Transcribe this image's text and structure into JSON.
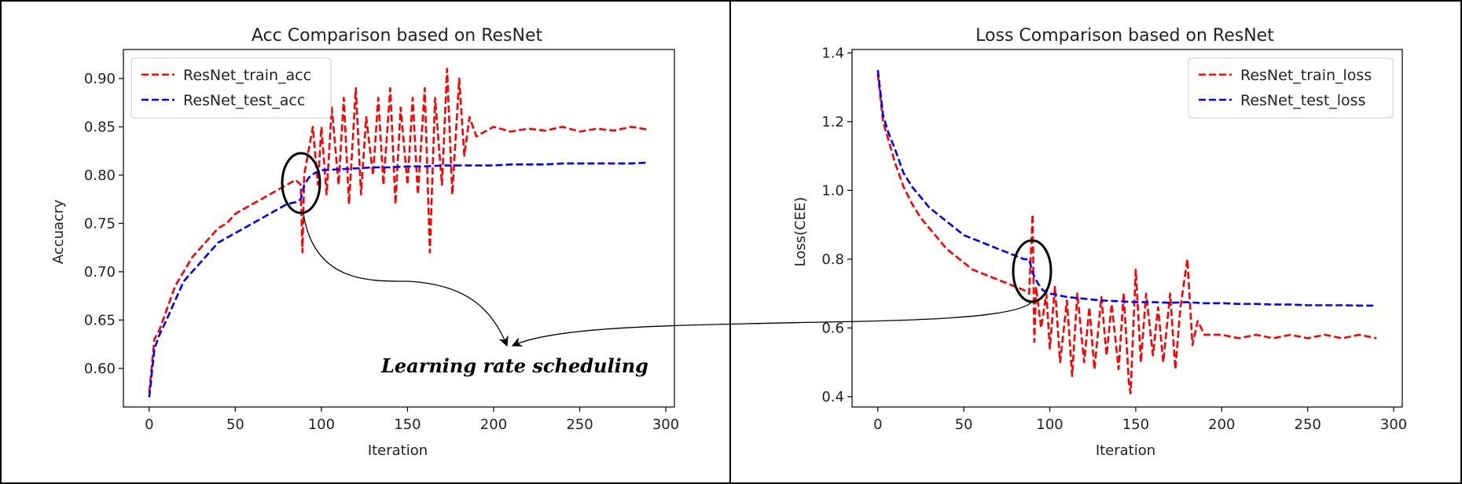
{
  "chart_data": [
    {
      "type": "line",
      "title": "Acc Comparison based on ResNet",
      "xlabel": "Iteration",
      "ylabel": "Accuacry",
      "xlim": [
        -15,
        305
      ],
      "ylim": [
        0.56,
        0.93
      ],
      "xticks": [
        0,
        50,
        100,
        150,
        200,
        250,
        300
      ],
      "yticks": [
        0.6,
        0.65,
        0.7,
        0.75,
        0.8,
        0.85,
        0.9
      ],
      "ytick_labels": [
        "0.60",
        "0.65",
        "0.70",
        "0.75",
        "0.80",
        "0.85",
        "0.90"
      ],
      "legend_position": "top-left",
      "grid": false,
      "series": [
        {
          "name": "ResNet_train_acc",
          "color": "#ff0000",
          "style": "dashed",
          "x": [
            0,
            3,
            6,
            10,
            15,
            20,
            25,
            30,
            35,
            40,
            45,
            50,
            55,
            60,
            65,
            70,
            75,
            80,
            85,
            88,
            89,
            90,
            92,
            95,
            98,
            100,
            103,
            106,
            110,
            113,
            116,
            120,
            123,
            126,
            130,
            133,
            136,
            140,
            143,
            146,
            150,
            153,
            156,
            160,
            163,
            166,
            170,
            173,
            176,
            180,
            183,
            186,
            188,
            190,
            195,
            200,
            210,
            220,
            230,
            240,
            250,
            260,
            270,
            280,
            290
          ],
          "y": [
            0.575,
            0.63,
            0.64,
            0.66,
            0.685,
            0.7,
            0.715,
            0.725,
            0.735,
            0.745,
            0.75,
            0.76,
            0.765,
            0.77,
            0.775,
            0.78,
            0.785,
            0.79,
            0.795,
            0.79,
            0.72,
            0.8,
            0.82,
            0.85,
            0.79,
            0.85,
            0.78,
            0.87,
            0.79,
            0.88,
            0.77,
            0.89,
            0.78,
            0.86,
            0.8,
            0.88,
            0.79,
            0.89,
            0.77,
            0.87,
            0.79,
            0.88,
            0.78,
            0.89,
            0.72,
            0.88,
            0.79,
            0.91,
            0.78,
            0.9,
            0.82,
            0.86,
            0.85,
            0.84,
            0.845,
            0.85,
            0.845,
            0.848,
            0.846,
            0.85,
            0.845,
            0.848,
            0.846,
            0.85,
            0.847
          ]
        },
        {
          "name": "ResNet_test_acc",
          "color": "#0000ff",
          "style": "dashed",
          "x": [
            0,
            3,
            6,
            10,
            15,
            20,
            25,
            30,
            35,
            40,
            45,
            50,
            55,
            60,
            65,
            70,
            75,
            80,
            85,
            88,
            90,
            93,
            96,
            100,
            110,
            120,
            130,
            140,
            150,
            160,
            170,
            180,
            190,
            200,
            210,
            220,
            230,
            240,
            250,
            260,
            270,
            280,
            290
          ],
          "y": [
            0.57,
            0.62,
            0.635,
            0.65,
            0.67,
            0.69,
            0.7,
            0.71,
            0.72,
            0.73,
            0.735,
            0.74,
            0.745,
            0.75,
            0.755,
            0.76,
            0.765,
            0.77,
            0.772,
            0.775,
            0.79,
            0.798,
            0.802,
            0.805,
            0.806,
            0.807,
            0.808,
            0.808,
            0.809,
            0.809,
            0.81,
            0.81,
            0.81,
            0.81,
            0.811,
            0.811,
            0.811,
            0.812,
            0.812,
            0.812,
            0.812,
            0.812,
            0.813
          ]
        }
      ]
    },
    {
      "type": "line",
      "title": "Loss Comparison based on ResNet",
      "xlabel": "Iteration",
      "ylabel": "Loss(CEE)",
      "xlim": [
        -15,
        305
      ],
      "ylim": [
        0.37,
        1.41
      ],
      "xticks": [
        0,
        50,
        100,
        150,
        200,
        250,
        300
      ],
      "yticks": [
        0.4,
        0.6,
        0.8,
        1.0,
        1.2,
        1.4
      ],
      "ytick_labels": [
        "0.4",
        "0.6",
        "0.8",
        "1.0",
        "1.2",
        "1.4"
      ],
      "legend_position": "top-right",
      "grid": false,
      "series": [
        {
          "name": "ResNet_train_loss",
          "color": "#ff0000",
          "style": "dashed",
          "x": [
            0,
            3,
            6,
            10,
            15,
            20,
            25,
            30,
            35,
            40,
            45,
            50,
            55,
            60,
            65,
            70,
            75,
            80,
            85,
            88,
            90,
            91,
            92,
            95,
            98,
            100,
            103,
            106,
            110,
            113,
            116,
            120,
            123,
            126,
            130,
            133,
            136,
            140,
            143,
            146,
            147,
            150,
            153,
            156,
            160,
            163,
            166,
            170,
            173,
            176,
            180,
            183,
            186,
            190,
            200,
            210,
            220,
            230,
            240,
            250,
            260,
            270,
            280,
            290
          ],
          "y": [
            1.34,
            1.2,
            1.15,
            1.08,
            1.01,
            0.96,
            0.92,
            0.89,
            0.86,
            0.83,
            0.81,
            0.79,
            0.77,
            0.76,
            0.75,
            0.74,
            0.73,
            0.72,
            0.71,
            0.7,
            0.93,
            0.56,
            0.72,
            0.6,
            0.7,
            0.54,
            0.72,
            0.5,
            0.68,
            0.46,
            0.7,
            0.5,
            0.66,
            0.48,
            0.69,
            0.52,
            0.67,
            0.48,
            0.7,
            0.44,
            0.41,
            0.77,
            0.5,
            0.7,
            0.52,
            0.66,
            0.5,
            0.7,
            0.48,
            0.66,
            0.8,
            0.55,
            0.62,
            0.58,
            0.58,
            0.57,
            0.58,
            0.57,
            0.58,
            0.57,
            0.58,
            0.57,
            0.58,
            0.57
          ]
        },
        {
          "name": "ResNet_test_loss",
          "color": "#0000ff",
          "style": "dashed",
          "x": [
            0,
            3,
            6,
            10,
            15,
            20,
            25,
            30,
            35,
            40,
            45,
            50,
            55,
            60,
            65,
            70,
            75,
            80,
            85,
            88,
            90,
            93,
            96,
            100,
            110,
            120,
            130,
            140,
            150,
            160,
            170,
            180,
            190,
            200,
            210,
            220,
            230,
            240,
            250,
            260,
            270,
            280,
            290
          ],
          "y": [
            1.35,
            1.22,
            1.17,
            1.12,
            1.05,
            1.01,
            0.98,
            0.95,
            0.93,
            0.91,
            0.89,
            0.87,
            0.86,
            0.85,
            0.84,
            0.83,
            0.82,
            0.81,
            0.8,
            0.8,
            0.76,
            0.73,
            0.71,
            0.7,
            0.69,
            0.685,
            0.68,
            0.678,
            0.675,
            0.675,
            0.673,
            0.675,
            0.672,
            0.672,
            0.67,
            0.67,
            0.668,
            0.668,
            0.666,
            0.666,
            0.666,
            0.665,
            0.665
          ]
        }
      ]
    }
  ],
  "annotation": {
    "text": "Learning rate scheduling"
  }
}
